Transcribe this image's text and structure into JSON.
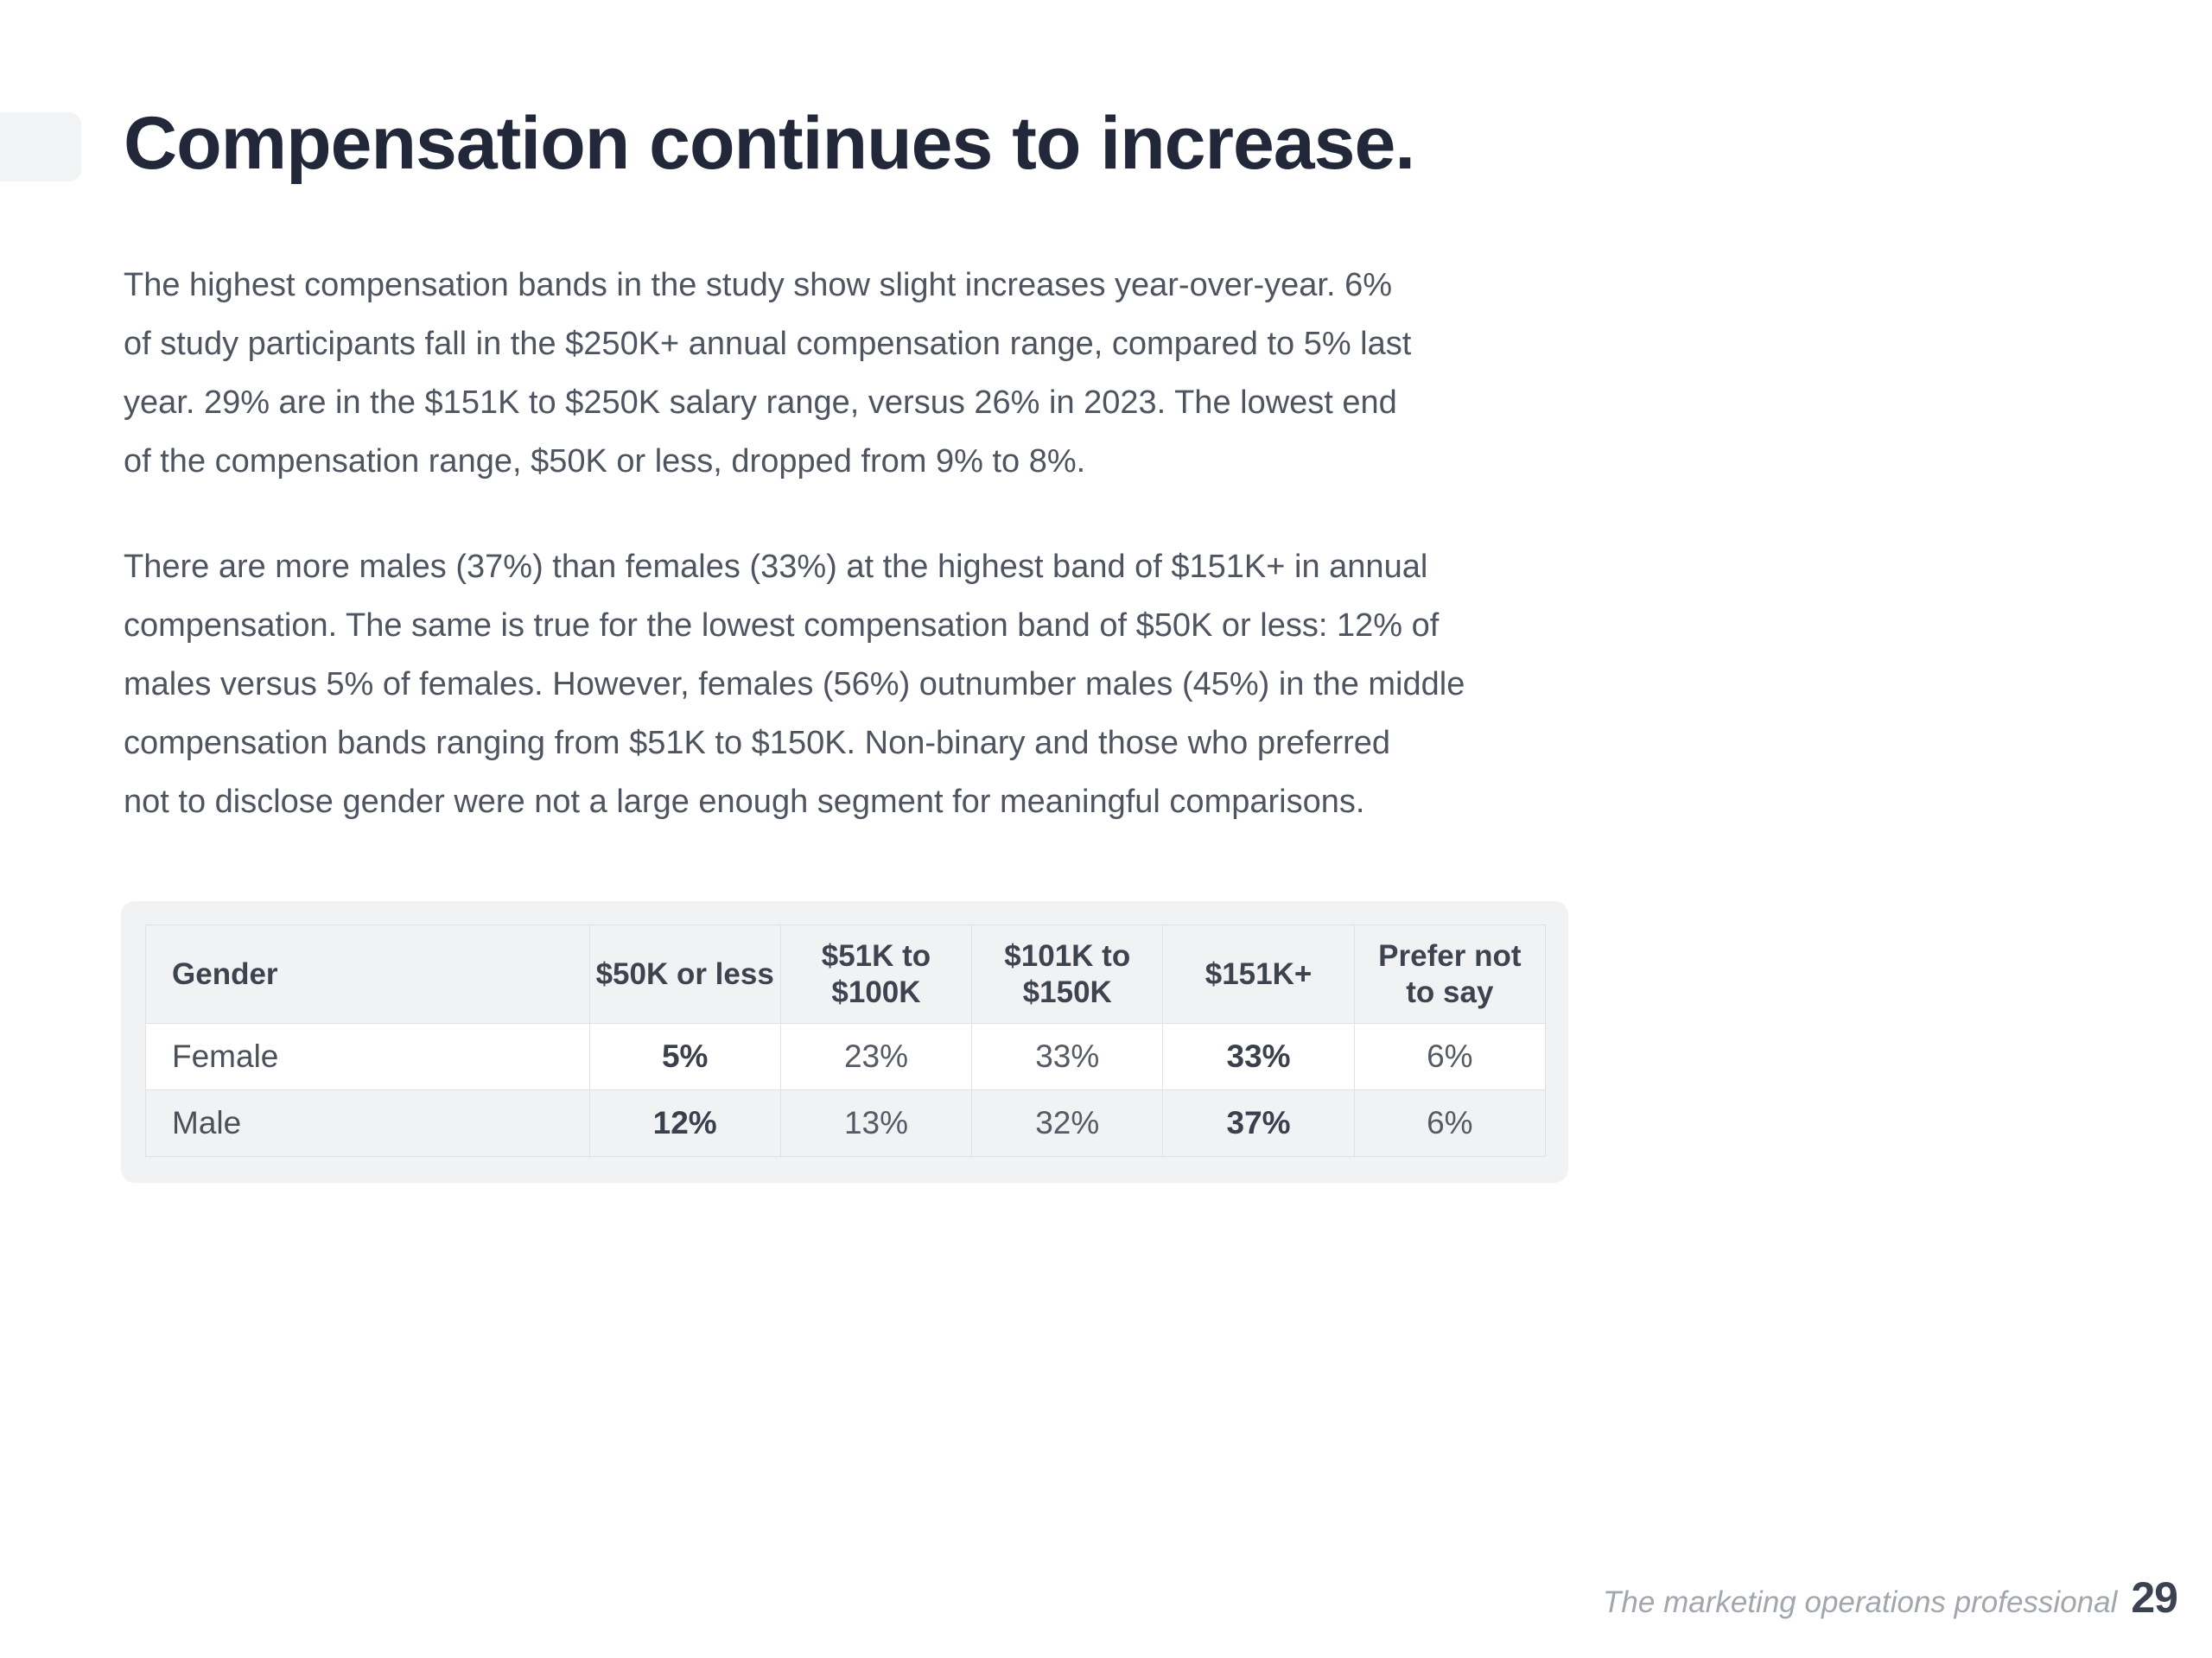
{
  "page": {
    "title": "Compensation continues to increase.",
    "paragraphs": {
      "p1": "The highest compensation bands in the study show slight increases year-over-year. 6%\nof study participants fall in the $250K+ annual compensation range, compared to 5% last\nyear. 29% are in the $151K to $250K salary range, versus 26% in 2023. The lowest end\nof the compensation range, $50K or less, dropped from 9% to 8%.",
      "p2": "There are more males (37%) than females (33%) at the highest band of $151K+ in annual\ncompensation. The same is true for the lowest compensation band of $50K or less: 12% of\nmales versus 5% of females. However, females (56%) outnumber males (45%) in the middle\ncompensation bands ranging from $51K to $150K. Non-binary and those who preferred\nnot to disclose gender were not a large enough segment for meaningful comparisons."
    },
    "footer": {
      "text": "The marketing operations professional",
      "page_number": "29"
    }
  },
  "table": {
    "columns": [
      "Gender",
      "$50K or less",
      "$51K to\n$100K",
      "$101K to\n$150K",
      "$151K+",
      "Prefer not\nto say"
    ],
    "rows": [
      {
        "label": "Female",
        "values": [
          "5%",
          "23%",
          "33%",
          "33%",
          "6%"
        ],
        "bold": [
          true,
          false,
          false,
          true,
          false
        ]
      },
      {
        "label": "Male",
        "values": [
          "12%",
          "13%",
          "32%",
          "37%",
          "6%"
        ],
        "bold": [
          true,
          false,
          false,
          true,
          false
        ]
      }
    ]
  },
  "colors": {
    "title": "#222839",
    "body_text": "#4f5560",
    "card_background": "#f1f2f4",
    "table_border": "#dfe1e5",
    "bold_cell_text": "#3a404c",
    "footer_text": "#a2a7ae",
    "page_number": "#3b4252"
  }
}
